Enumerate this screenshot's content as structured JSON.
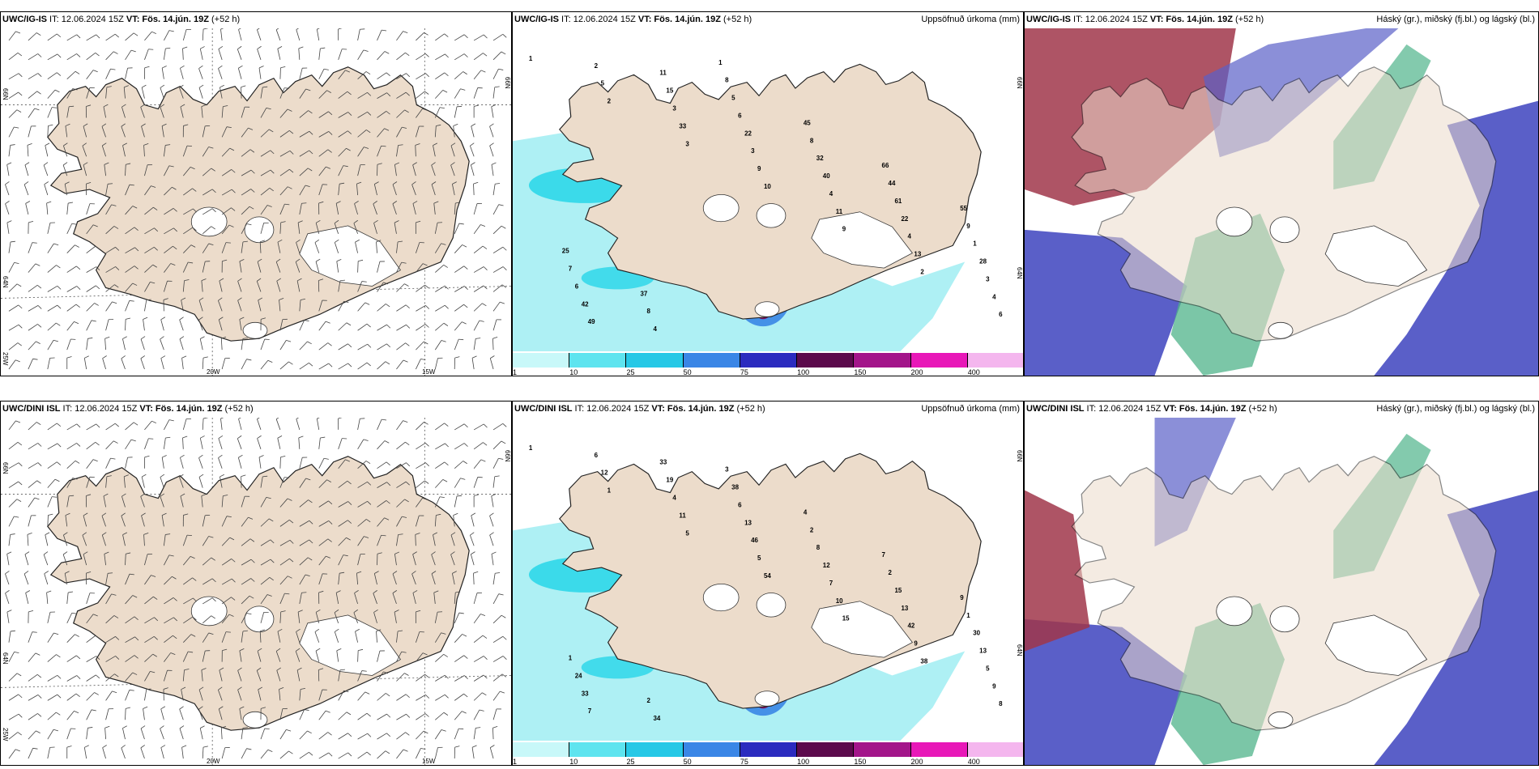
{
  "colors": {
    "land": "#ecdccb",
    "cloud_blue": "#5a5fc8",
    "cloud_green": "#4fb38a",
    "cloud_red": "#a0364a",
    "precip_light": "#aef0f4",
    "precip_mid": "#27d6e8",
    "precip_heavy": "#7a0d5e"
  },
  "rows": [
    {
      "wind": {
        "title_bold": "UWC/IG-IS",
        "title_rest": " IT: 12.06.2024 15Z ",
        "vt_bold": "VT: Fös. 14.jún. 19Z",
        "vt_rest": " (+52 h)",
        "lat1": "66N",
        "lat2": "64N",
        "lat3": "25W",
        "lon1": "20W",
        "lon2": "15W",
        "lat1b": "66N"
      },
      "precip": {
        "title_bold": "UWC/IG-IS",
        "title_rest": " IT: 12.06.2024 15Z ",
        "vt_bold": "VT: Fös. 14.jún. 19Z",
        "vt_rest": " (+52 h)",
        "right": "Uppsöfnuð úrkoma (mm)",
        "lat1": "66N",
        "lat2": "64N",
        "numbers": [
          "1",
          "2",
          "3",
          "10",
          "9",
          "2",
          "6",
          "5",
          "33",
          "9",
          "11",
          "13",
          "4",
          "2",
          "3",
          "3",
          "4",
          "4",
          "3",
          "49",
          "15",
          "22",
          "40",
          "22",
          "28",
          "42",
          "11",
          "6",
          "32",
          "61",
          "1",
          "6",
          "4",
          "5",
          "8",
          "44",
          "9",
          "7",
          "8",
          "8",
          "45",
          "66",
          "55",
          "25",
          "37",
          "1"
        ]
      },
      "cloud": {
        "title_bold": "UWC/IG-IS",
        "title_rest": " IT: 12.06.2024 15Z ",
        "vt_bold": "VT: Fös. 14.jún. 19Z",
        "vt_rest": " (+52 h)",
        "right": "Háský (gr.), miðský (fj.bl.) og lágský (bl.)"
      }
    },
    {
      "wind": {
        "title_bold": "UWC/DINI ISL",
        "title_rest": " IT: 12.06.2024 15Z ",
        "vt_bold": "VT: Fös. 14.jún. 19Z",
        "vt_rest": " (+52 h)",
        "lat1": "66N",
        "lat2": "64N",
        "lat3": "25W",
        "lon1": "20W",
        "lon2": "15W",
        "lat1b": "66N"
      },
      "precip": {
        "title_bold": "UWC/DINI ISL",
        "title_rest": " IT: 12.06.2024 15Z ",
        "vt_bold": "VT: Fös. 14.jún. 19Z",
        "vt_rest": " (+52 h)",
        "right": "Uppsöfnuð úrkoma (mm)",
        "lat1": "66N",
        "lat2": "64N",
        "numbers": [
          "1",
          "1",
          "5",
          "54",
          "15",
          "38",
          "8",
          "12",
          "11",
          "5",
          "10",
          "9",
          "9",
          "6",
          "4",
          "46",
          "7",
          "42",
          "5",
          "7",
          "19",
          "13",
          "12",
          "13",
          "13",
          "33",
          "33",
          "6",
          "8",
          "15",
          "30",
          "24",
          "34",
          "38",
          "2",
          "2",
          "1",
          "1",
          "2",
          "3",
          "4",
          "7",
          "9"
        ]
      },
      "cloud": {
        "title_bold": "UWC/DINI ISL",
        "title_rest": " IT: 12.06.2024 15Z ",
        "vt_bold": "VT: Fös. 14.jún. 19Z",
        "vt_rest": " (+52 h)",
        "right": "Háský (gr.), miðský (fj.bl.) og lágský (bl.)"
      }
    }
  ],
  "colorbar": {
    "labels": [
      "1",
      "10",
      "25",
      "50",
      "75",
      "100",
      "150",
      "200",
      "400"
    ],
    "colors": [
      "#c8f8f9",
      "#5ee4ef",
      "#26c8e6",
      "#3a86e6",
      "#2b2bbf",
      "#5c0a4c",
      "#a3158a",
      "#e818b8",
      "#f4b6ee"
    ]
  }
}
